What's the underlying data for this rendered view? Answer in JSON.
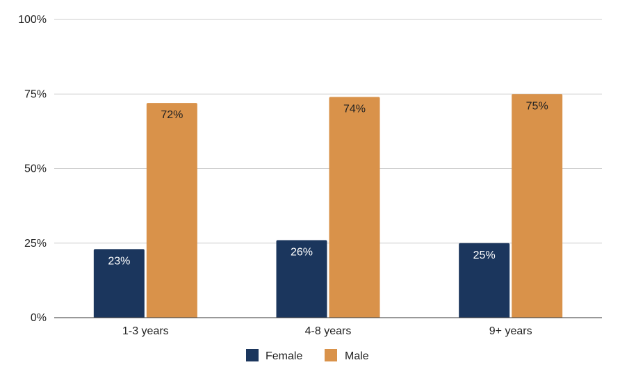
{
  "chart_data": {
    "type": "bar",
    "categories": [
      "1-3 years",
      "4-8 years",
      "9+ years"
    ],
    "series": [
      {
        "name": "Female",
        "values": [
          23,
          26,
          25
        ],
        "labels": [
          "23%",
          "26%",
          "25%"
        ],
        "color": "#1b365d"
      },
      {
        "name": "Male",
        "values": [
          72,
          74,
          75
        ],
        "labels": [
          "72%",
          "74%",
          "75%"
        ],
        "color": "#d9924a"
      }
    ],
    "ylim": [
      0,
      100
    ],
    "yticks": [
      {
        "value": 0,
        "label": "0%"
      },
      {
        "value": 25,
        "label": "25%"
      },
      {
        "value": 50,
        "label": "50%"
      },
      {
        "value": 75,
        "label": "75%"
      },
      {
        "value": 100,
        "label": "100%"
      }
    ],
    "grid": true,
    "legend": "bottom",
    "title": "",
    "xlabel": "",
    "ylabel": ""
  }
}
